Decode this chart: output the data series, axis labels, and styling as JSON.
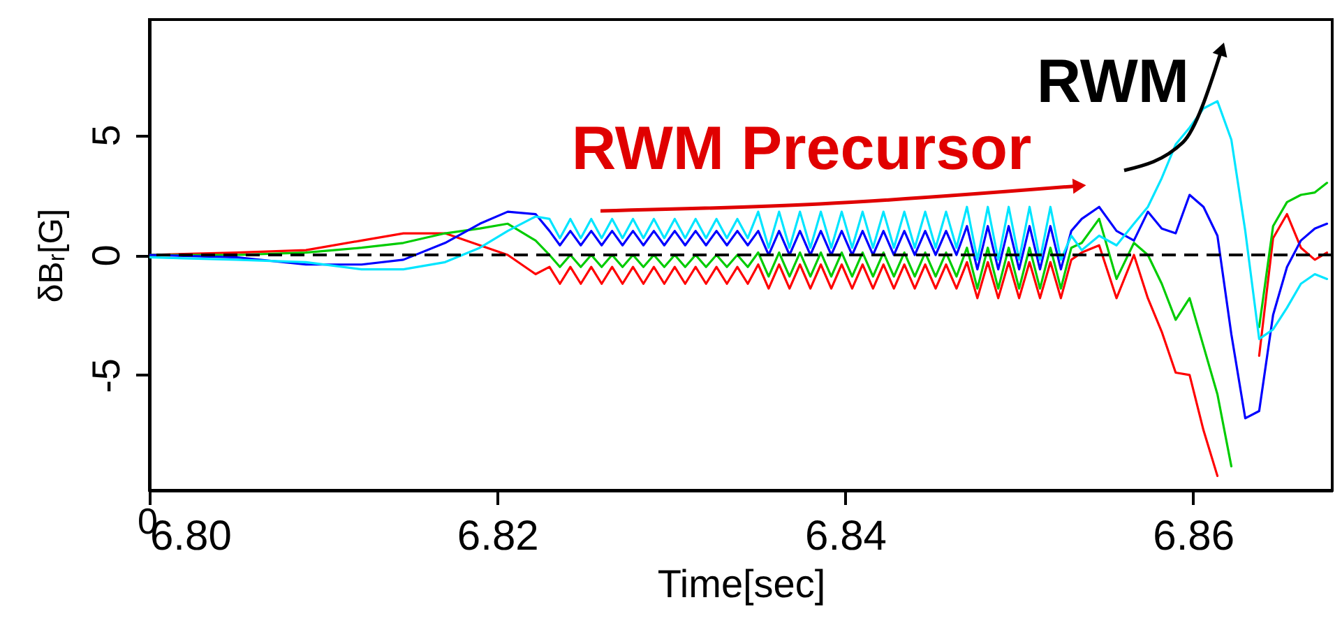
{
  "chart_data": {
    "type": "line",
    "xlabel": "Time[sec]",
    "ylabel": "δBᵣ[G]",
    "xlim": [
      6.8,
      6.868
    ],
    "ylim": [
      -9.8,
      9.8
    ],
    "xticks": [
      {
        "value": 6.8,
        "label": "6.80"
      },
      {
        "value": 6.82,
        "label": "6.82"
      },
      {
        "value": 6.84,
        "label": "6.84"
      },
      {
        "value": 6.86,
        "label": "6.86"
      }
    ],
    "yticks": [
      -5,
      0,
      5
    ],
    "x": [
      6.8,
      6.805,
      6.809,
      6.8122,
      6.8146,
      6.817,
      6.819,
      6.8206,
      6.8222,
      6.823,
      6.8236,
      6.8242,
      6.8248,
      6.8254,
      6.826,
      6.8266,
      6.8272,
      6.8278,
      6.8284,
      6.829,
      6.8296,
      6.8302,
      6.8308,
      6.8314,
      6.832,
      6.8326,
      6.8332,
      6.8338,
      6.8344,
      6.835,
      6.8356,
      6.8362,
      6.8368,
      6.8374,
      6.838,
      6.8386,
      6.8392,
      6.8398,
      6.8404,
      6.841,
      6.8416,
      6.8422,
      6.8428,
      6.8434,
      6.844,
      6.8446,
      6.8452,
      6.8458,
      6.8464,
      6.847,
      6.8476,
      6.8482,
      6.8488,
      6.8494,
      6.85,
      6.8506,
      6.8512,
      6.8518,
      6.8524,
      6.853,
      6.8536,
      6.8546,
      6.8556,
      6.8566,
      6.8574,
      6.8582,
      6.859,
      6.8598,
      6.8606,
      6.8614,
      6.8622,
      6.863,
      6.8638,
      6.8646,
      6.8654,
      6.8662,
      6.867,
      6.8677
    ],
    "series": [
      {
        "color": "#ff0000",
        "values": [
          0,
          0.1,
          0.2,
          0.6,
          0.9,
          0.9,
          0.4,
          0,
          -0.8,
          -0.5,
          -1.2,
          -0.5,
          -1.2,
          -0.5,
          -1.2,
          -0.5,
          -1.2,
          -0.5,
          -1.2,
          -0.5,
          -1.2,
          -0.5,
          -1.2,
          -0.5,
          -1.2,
          -0.5,
          -1.2,
          -0.5,
          -1.2,
          -0.4,
          -1.4,
          -0.4,
          -1.4,
          -0.4,
          -1.4,
          -0.4,
          -1.4,
          -0.4,
          -1.4,
          -0.4,
          -1.4,
          -0.4,
          -1.4,
          -0.4,
          -1.4,
          -0.4,
          -1.4,
          -0.4,
          -1.4,
          -0.3,
          -1.8,
          -0.3,
          -1.8,
          -0.3,
          -1.8,
          -0.3,
          -1.8,
          -0.3,
          -1.8,
          -0.2,
          0.1,
          0.4,
          -1.8,
          0,
          -1.8,
          -3.2,
          -4.9,
          -5,
          -7.3,
          -9.2,
          null,
          null,
          -4.2,
          0.7,
          1.7,
          0.3,
          -0.2,
          0.1
        ]
      },
      {
        "color": "#00cc00",
        "values": [
          0,
          0,
          0.1,
          0.3,
          0.5,
          0.9,
          1.1,
          1.3,
          0.6,
          0,
          -0.5,
          0,
          -0.5,
          0,
          -0.5,
          0,
          -0.5,
          0,
          -0.5,
          0,
          -0.5,
          0,
          -0.5,
          0,
          -0.5,
          0,
          -0.5,
          0,
          -0.5,
          0.1,
          -0.9,
          0.1,
          -0.9,
          0.1,
          -0.9,
          0.1,
          -0.9,
          0.1,
          -0.9,
          0.1,
          -0.9,
          0.1,
          -0.9,
          0.1,
          -0.9,
          0.1,
          -0.9,
          0.1,
          -0.9,
          0.3,
          -1.4,
          0.3,
          -1.4,
          0.3,
          -1.4,
          0.3,
          -1.4,
          0.3,
          -1.4,
          0.3,
          0.5,
          1.5,
          -1,
          0.5,
          0,
          -1.2,
          -2.7,
          -1.8,
          -3.8,
          -5.8,
          -8.8,
          null,
          -3,
          1.2,
          2.2,
          2.5,
          2.6,
          3
        ]
      },
      {
        "color": "#0000ff",
        "values": [
          0,
          -0.1,
          -0.4,
          -0.4,
          -0.2,
          0.5,
          1.3,
          1.8,
          1.7,
          1,
          0.4,
          1,
          0.4,
          1,
          0.4,
          1,
          0.4,
          1,
          0.4,
          1,
          0.4,
          1,
          0.4,
          1,
          0.4,
          1,
          0.4,
          1,
          0.4,
          1,
          0,
          1,
          0,
          1,
          0,
          1,
          0,
          1,
          0,
          1,
          0,
          1,
          0,
          1,
          0,
          1,
          0,
          1,
          0,
          1.2,
          -0.6,
          1.2,
          -0.6,
          1.2,
          -0.6,
          1.2,
          -0.6,
          1.2,
          -0.6,
          1,
          1.5,
          2,
          1,
          0.6,
          1.8,
          1.1,
          0.9,
          2.5,
          2,
          0.8,
          -3.3,
          -6.8,
          -6.5,
          -2.5,
          -0.5,
          0.6,
          1.1,
          1.3
        ]
      },
      {
        "color": "#00e5ff",
        "values": [
          -0.1,
          -0.2,
          -0.3,
          -0.6,
          -0.6,
          -0.3,
          0.3,
          1,
          1.6,
          1.5,
          0.7,
          1.5,
          0.7,
          1.5,
          0.7,
          1.5,
          0.7,
          1.5,
          0.7,
          1.5,
          0.7,
          1.5,
          0.7,
          1.5,
          0.7,
          1.5,
          0.7,
          1.5,
          0.7,
          1.8,
          0.3,
          1.8,
          0.3,
          1.8,
          0.3,
          1.8,
          0.3,
          1.8,
          0.3,
          1.8,
          0.3,
          1.8,
          0.3,
          1.8,
          0.3,
          1.8,
          0.3,
          1.8,
          0.3,
          2,
          -0.2,
          2,
          -0.2,
          2,
          -0.2,
          2,
          -0.2,
          2,
          -0.2,
          0.8,
          0.2,
          0.8,
          0.4,
          1.3,
          2,
          3.2,
          4.6,
          5.3,
          6.1,
          6.4,
          4.8,
          1,
          -3.5,
          -3.1,
          -2.2,
          -1.2,
          -0.8,
          -1
        ]
      }
    ],
    "ref_lines": [
      {
        "axis": "y",
        "value": 0,
        "color": "#000000",
        "line_style": "dashed"
      }
    ],
    "annotations": [
      "RWM Precursor",
      "RWM",
      "0"
    ]
  }
}
